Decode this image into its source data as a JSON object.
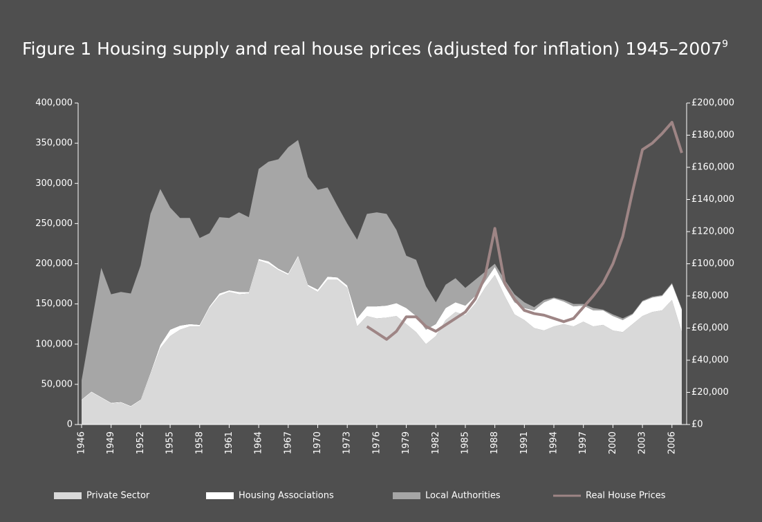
{
  "chart_data": {
    "type": "stacked_area_line",
    "title": "Figure 1 Housing supply and real house prices (adjusted for inflation) 1945–2007",
    "title_note": "9",
    "x": [
      1946,
      1947,
      1948,
      1949,
      1950,
      1951,
      1952,
      1953,
      1954,
      1955,
      1956,
      1957,
      1958,
      1959,
      1960,
      1961,
      1962,
      1963,
      1964,
      1965,
      1966,
      1967,
      1968,
      1969,
      1970,
      1971,
      1972,
      1973,
      1974,
      1975,
      1976,
      1977,
      1978,
      1979,
      1980,
      1981,
      1982,
      1983,
      1984,
      1985,
      1986,
      1987,
      1988,
      1989,
      1990,
      1991,
      1992,
      1993,
      1994,
      1995,
      1996,
      1997,
      1998,
      1999,
      2000,
      2001,
      2002,
      2003,
      2004,
      2005,
      2006,
      2007
    ],
    "xlim": [
      1946,
      2007
    ],
    "xticks": [
      1946,
      1949,
      1952,
      1955,
      1958,
      1961,
      1964,
      1967,
      1970,
      1973,
      1976,
      1979,
      1982,
      1985,
      1988,
      1991,
      1994,
      1997,
      2000,
      2003,
      2006
    ],
    "ylim": [
      0,
      400000
    ],
    "yticks": [
      0,
      {
        "value": 50000,
        "label": "50,000"
      },
      {
        "value": 100000,
        "label": "100,000"
      },
      {
        "value": 150000,
        "label": "150,000"
      },
      {
        "value": 200000,
        "label": "200,000"
      },
      {
        "value": 250000,
        "label": "250,000"
      },
      {
        "value": 300000,
        "label": "300,000"
      },
      {
        "value": 350000,
        "label": "350,000"
      },
      {
        "value": 400000,
        "label": "400,000"
      }
    ],
    "y2lim": [
      0,
      200000
    ],
    "y2ticks": [
      {
        "value": 0,
        "label": "£0"
      },
      {
        "value": 20000,
        "label": "£20,000"
      },
      {
        "value": 40000,
        "label": "£40,000"
      },
      {
        "value": 60000,
        "label": "£60,000"
      },
      {
        "value": 80000,
        "label": "£80,000"
      },
      {
        "value": 100000,
        "label": "£100,000"
      },
      {
        "value": 120000,
        "label": "£120,000"
      },
      {
        "value": 140000,
        "label": "£140,000"
      },
      {
        "value": 160000,
        "label": "£160,000"
      },
      {
        "value": 180000,
        "label": "£180,000"
      },
      {
        "value": 200000,
        "label": "£200,000"
      }
    ],
    "series": [
      {
        "name": "Private Sector",
        "color": "#d9d9d9",
        "kind": "area",
        "values": [
          30000,
          40000,
          33000,
          26000,
          27000,
          22000,
          30000,
          62000,
          95000,
          110000,
          118000,
          122000,
          122000,
          145000,
          160000,
          165000,
          162000,
          163000,
          204000,
          200000,
          192000,
          186000,
          208000,
          172000,
          165000,
          180000,
          180000,
          170000,
          122000,
          135000,
          132000,
          133000,
          135000,
          125000,
          115000,
          100000,
          110000,
          130000,
          140000,
          136000,
          150000,
          170000,
          186000,
          160000,
          137000,
          130000,
          120000,
          117000,
          122000,
          125000,
          122000,
          128000,
          122000,
          124000,
          117000,
          115000,
          125000,
          135000,
          140000,
          142000,
          155000,
          115000
        ]
      },
      {
        "name": "Housing Associations",
        "color": "#ffffff",
        "kind": "area",
        "values": [
          1000,
          1000,
          1000,
          1000,
          1000,
          1000,
          1000,
          2000,
          4000,
          8000,
          5000,
          3000,
          2000,
          2000,
          3000,
          2000,
          3000,
          2000,
          2000,
          3000,
          2000,
          2000,
          2000,
          2000,
          3000,
          4000,
          3000,
          3000,
          10000,
          12000,
          15000,
          15000,
          16000,
          20000,
          20000,
          18000,
          15000,
          15000,
          12000,
          12000,
          10000,
          8000,
          10000,
          12000,
          15000,
          15000,
          22000,
          35000,
          35000,
          28000,
          25000,
          20000,
          20000,
          18000,
          18000,
          15000,
          12000,
          18000,
          18000,
          18000,
          20000,
          28000
        ]
      },
      {
        "name": "Local Authorities",
        "color": "#a6a6a6",
        "kind": "area",
        "values": [
          24000,
          84000,
          161000,
          135000,
          137000,
          140000,
          167000,
          198000,
          194000,
          152000,
          134000,
          132000,
          108000,
          91000,
          95000,
          90000,
          99000,
          93000,
          112000,
          124000,
          136000,
          157000,
          144000,
          134000,
          124000,
          111000,
          89000,
          77000,
          98000,
          115000,
          117000,
          114000,
          91000,
          65000,
          70000,
          54000,
          27000,
          29000,
          30000,
          22000,
          20000,
          12000,
          4000,
          8000,
          10000,
          7000,
          4000,
          3000,
          1000,
          2000,
          3000,
          2000,
          3000,
          1000,
          2000,
          2000,
          1000,
          1000,
          1000,
          1000,
          1000,
          1000
        ]
      },
      {
        "name": "Real House Prices",
        "color": "#9e8585",
        "kind": "line",
        "axis": "y2",
        "values": [
          null,
          null,
          null,
          null,
          null,
          null,
          null,
          null,
          null,
          null,
          null,
          null,
          null,
          null,
          null,
          null,
          null,
          null,
          null,
          null,
          null,
          null,
          null,
          null,
          null,
          null,
          null,
          null,
          null,
          61000,
          57000,
          53000,
          58000,
          67000,
          67000,
          61000,
          58000,
          62000,
          66000,
          70000,
          78000,
          92000,
          122000,
          88000,
          78000,
          71000,
          69000,
          68000,
          66000,
          64000,
          66000,
          73000,
          80000,
          88000,
          100000,
          117000,
          145000,
          171000,
          175000,
          181000,
          188000,
          169000
        ]
      }
    ]
  }
}
